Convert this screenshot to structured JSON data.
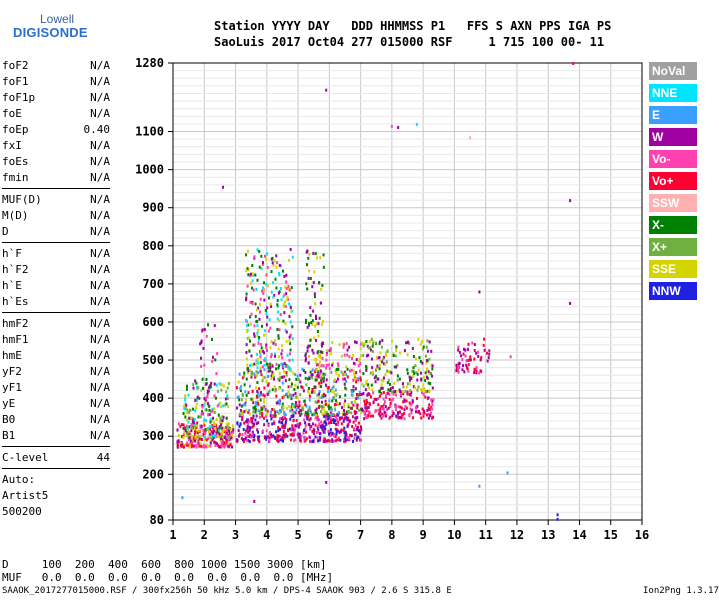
{
  "logo": {
    "line1": "Lowell",
    "line2": "DIGISONDE"
  },
  "header": {
    "line1": "Station YYYY DAY   DDD HHMMSS P1   FFS S AXN PPS IGA PS",
    "line2": "SaoLuis 2017 Oct04 277 015000 RSF     1 715 100 00- 11"
  },
  "params": {
    "group1": [
      {
        "name": "foF2",
        "value": "N/A"
      },
      {
        "name": "foF1",
        "value": "N/A"
      },
      {
        "name": "foF1p",
        "value": "N/A"
      },
      {
        "name": "foE",
        "value": "N/A"
      },
      {
        "name": "foEp",
        "value": "0.40"
      },
      {
        "name": "fxI",
        "value": "N/A"
      },
      {
        "name": "foEs",
        "value": "N/A"
      },
      {
        "name": "fmin",
        "value": "N/A"
      }
    ],
    "group2": [
      {
        "name": "MUF(D)",
        "value": "N/A"
      },
      {
        "name": "M(D)",
        "value": "N/A"
      },
      {
        "name": "D",
        "value": "N/A"
      }
    ],
    "group3": [
      {
        "name": "h`F",
        "value": "N/A"
      },
      {
        "name": "h`F2",
        "value": "N/A"
      },
      {
        "name": "h`E",
        "value": "N/A"
      },
      {
        "name": "h`Es",
        "value": "N/A"
      }
    ],
    "group4": [
      {
        "name": "hmF2",
        "value": "N/A"
      },
      {
        "name": "hmF1",
        "value": "N/A"
      },
      {
        "name": "hmE",
        "value": "N/A"
      },
      {
        "name": "yF2",
        "value": "N/A"
      },
      {
        "name": "yF1",
        "value": "N/A"
      },
      {
        "name": "yE",
        "value": "N/A"
      },
      {
        "name": "B0",
        "value": "N/A"
      },
      {
        "name": "B1",
        "value": "N/A"
      }
    ],
    "group5": [
      {
        "name": "C-level",
        "value": "44"
      }
    ],
    "auto": [
      "Auto:",
      "Artist5",
      "500200"
    ]
  },
  "chart_data": {
    "type": "scatter",
    "xlim": [
      1,
      16
    ],
    "ylim": [
      80,
      1280
    ],
    "x_ticks": [
      1,
      2,
      3,
      4,
      5,
      6,
      7,
      8,
      9,
      10,
      11,
      12,
      13,
      14,
      15,
      16
    ],
    "y_ticks": [
      80,
      200,
      300,
      400,
      500,
      600,
      700,
      800,
      900,
      1000,
      1100,
      1280
    ],
    "grid": true,
    "legend_position": "right",
    "legend": [
      {
        "label": "NoVal",
        "color": "#a0a0a0"
      },
      {
        "label": "NNE",
        "color": "#00e5ff"
      },
      {
        "label": "E",
        "color": "#3aa0ff"
      },
      {
        "label": "W",
        "color": "#a000a0"
      },
      {
        "label": "Vo-",
        "color": "#ff40b0"
      },
      {
        "label": "Vo+",
        "color": "#ff0033"
      },
      {
        "label": "SSW",
        "color": "#ffb0b0"
      },
      {
        "label": "X-",
        "color": "#008000"
      },
      {
        "label": "X+",
        "color": "#70b040"
      },
      {
        "label": "SSE",
        "color": "#d4d400"
      },
      {
        "label": "NNW",
        "color": "#2020e0"
      }
    ],
    "clusters": [
      {
        "x": [
          1.1,
          2.9
        ],
        "y": [
          275,
          340
        ],
        "n": 260,
        "colors": [
          "#ff0033",
          "#a000a0",
          "#ff40b0",
          "#d4d400"
        ]
      },
      {
        "x": [
          1.3,
          2.8
        ],
        "y": [
          300,
          450
        ],
        "n": 160,
        "colors": [
          "#d4d400",
          "#008000",
          "#70b040",
          "#a000a0",
          "#00e5ff"
        ]
      },
      {
        "x": [
          1.8,
          2.4
        ],
        "y": [
          360,
          600
        ],
        "n": 40,
        "colors": [
          "#a000a0",
          "#008000",
          "#ff40b0"
        ]
      },
      {
        "x": [
          3.0,
          7.0
        ],
        "y": [
          290,
          360
        ],
        "n": 420,
        "colors": [
          "#ff0033",
          "#a000a0",
          "#ff40b0",
          "#2020e0"
        ]
      },
      {
        "x": [
          3.0,
          7.0
        ],
        "y": [
          360,
          480
        ],
        "n": 450,
        "colors": [
          "#d4d400",
          "#008000",
          "#70b040",
          "#a000a0",
          "#ff0033",
          "#3aa0ff"
        ]
      },
      {
        "x": [
          3.3,
          4.8
        ],
        "y": [
          480,
          800
        ],
        "n": 260,
        "colors": [
          "#d4d400",
          "#a000a0",
          "#008000",
          "#ff40b0",
          "#00e5ff"
        ]
      },
      {
        "x": [
          5.2,
          5.8
        ],
        "y": [
          450,
          800
        ],
        "n": 90,
        "colors": [
          "#d4d400",
          "#a000a0",
          "#008000"
        ]
      },
      {
        "x": [
          5.5,
          7.0
        ],
        "y": [
          450,
          560
        ],
        "n": 80,
        "colors": [
          "#d4d400",
          "#a000a0",
          "#ff40b0"
        ]
      },
      {
        "x": [
          7.0,
          9.3
        ],
        "y": [
          350,
          420
        ],
        "n": 180,
        "colors": [
          "#ff0033",
          "#a000a0",
          "#ff40b0"
        ]
      },
      {
        "x": [
          7.0,
          9.3
        ],
        "y": [
          420,
          560
        ],
        "n": 200,
        "colors": [
          "#d4d400",
          "#008000",
          "#70b040",
          "#a000a0"
        ]
      },
      {
        "x": [
          10.0,
          11.1
        ],
        "y": [
          470,
          560
        ],
        "n": 60,
        "colors": [
          "#a000a0",
          "#ff40b0",
          "#ff0033"
        ]
      }
    ],
    "points": [
      {
        "x": 2.6,
        "y": 955,
        "color": "#a000a0"
      },
      {
        "x": 5.9,
        "y": 1210,
        "color": "#a000a0"
      },
      {
        "x": 8.0,
        "y": 1115,
        "color": "#ff40b0"
      },
      {
        "x": 8.2,
        "y": 1112,
        "color": "#a000a0"
      },
      {
        "x": 8.8,
        "y": 1120,
        "color": "#00e5ff"
      },
      {
        "x": 10.5,
        "y": 1085,
        "color": "#ffb0b0"
      },
      {
        "x": 13.7,
        "y": 920,
        "color": "#a000a0"
      },
      {
        "x": 13.7,
        "y": 650,
        "color": "#a000a0"
      },
      {
        "x": 13.8,
        "y": 1280,
        "color": "#ff0033"
      },
      {
        "x": 10.8,
        "y": 680,
        "color": "#a000a0"
      },
      {
        "x": 11.7,
        "y": 205,
        "color": "#3aa0ff"
      },
      {
        "x": 10.8,
        "y": 170,
        "color": "#3aa0ff"
      },
      {
        "x": 13.3,
        "y": 95,
        "color": "#2020e0"
      },
      {
        "x": 13.3,
        "y": 83,
        "color": "#2020e0"
      },
      {
        "x": 1.3,
        "y": 140,
        "color": "#3aa0ff"
      },
      {
        "x": 3.6,
        "y": 130,
        "color": "#a000a0"
      },
      {
        "x": 5.9,
        "y": 180,
        "color": "#a000a0"
      },
      {
        "x": 11.8,
        "y": 510,
        "color": "#ff40b0"
      }
    ]
  },
  "bottom": {
    "line1": "D     100  200  400  600  800 1000 1500 3000 [km]",
    "line2": "MUF   0.0  0.0  0.0  0.0  0.0  0.0  0.0  0.0 [MHz]",
    "footer": "SAAOK_2017277015000.RSF / 300fx256h 50 kHz 5.0 km / DPS-4 SAAOK 903 / 2.6 S 315.8 E",
    "version": "Ion2Png 1.3.17"
  }
}
